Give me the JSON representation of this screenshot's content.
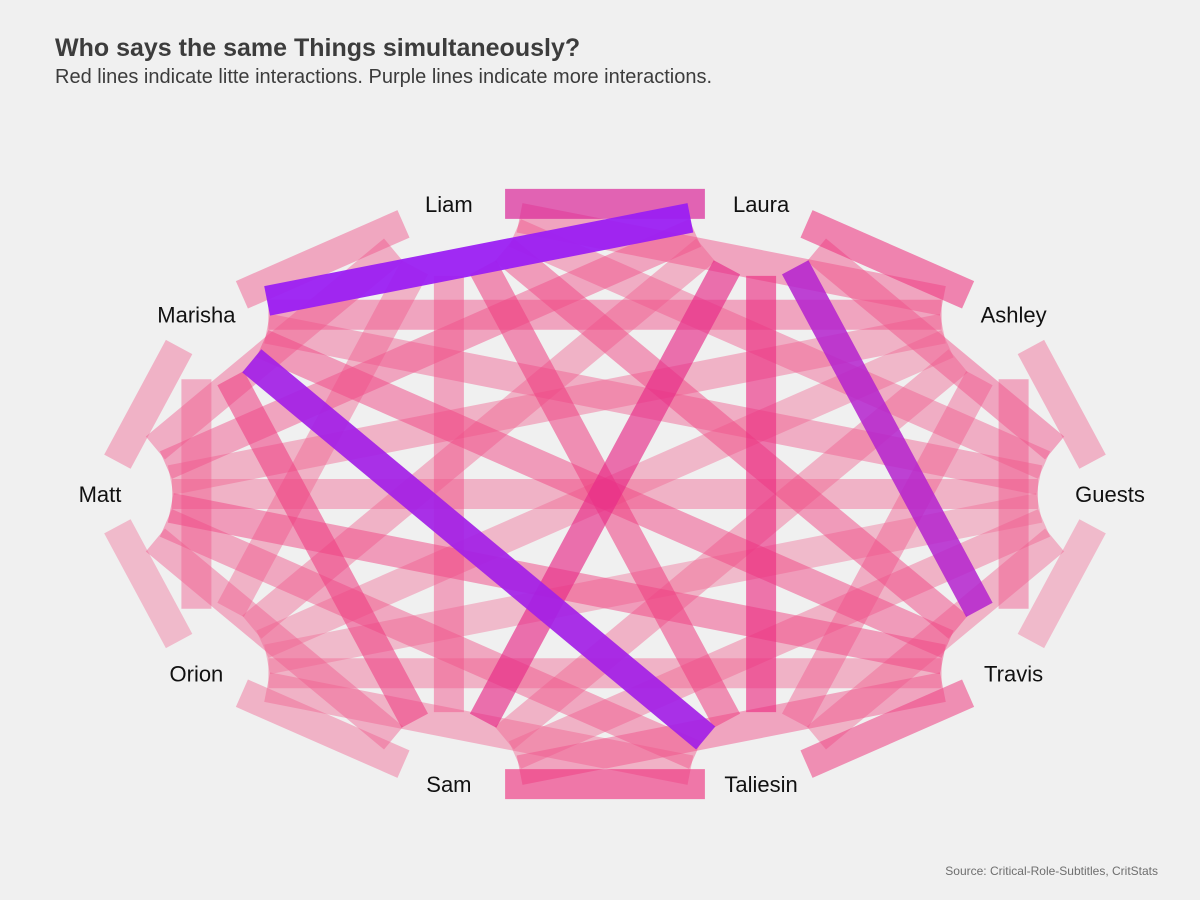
{
  "title": "Who says the same Things simultaneously?",
  "subtitle": "Red lines indicate litte interactions. Purple lines indicate more interactions.",
  "caption": "Source: Critical-Role-Subtitles, CritStats",
  "chart_data": {
    "type": "network",
    "layout": "circle",
    "nodes": [
      "Liam",
      "Laura",
      "Ashley",
      "Guests",
      "Travis",
      "Taliesin",
      "Sam",
      "Orion",
      "Matt",
      "Marisha"
    ],
    "color_scale": {
      "low": "#f28ea0",
      "mid": "#ee2a7b",
      "high": "#9b1ff2"
    },
    "edges": [
      {
        "source": "Liam",
        "target": "Laura",
        "weight": 0.62
      },
      {
        "source": "Liam",
        "target": "Ashley",
        "weight": 0.3
      },
      {
        "source": "Liam",
        "target": "Guests",
        "weight": 0.25
      },
      {
        "source": "Liam",
        "target": "Travis",
        "weight": 0.35
      },
      {
        "source": "Liam",
        "target": "Taliesin",
        "weight": 0.4
      },
      {
        "source": "Liam",
        "target": "Sam",
        "weight": 0.3
      },
      {
        "source": "Liam",
        "target": "Orion",
        "weight": 0.22
      },
      {
        "source": "Liam",
        "target": "Matt",
        "weight": 0.25
      },
      {
        "source": "Liam",
        "target": "Marisha",
        "weight": 0.28
      },
      {
        "source": "Laura",
        "target": "Ashley",
        "weight": 0.45
      },
      {
        "source": "Laura",
        "target": "Guests",
        "weight": 0.3
      },
      {
        "source": "Laura",
        "target": "Travis",
        "weight": 0.85
      },
      {
        "source": "Laura",
        "target": "Taliesin",
        "weight": 0.52
      },
      {
        "source": "Laura",
        "target": "Sam",
        "weight": 0.55
      },
      {
        "source": "Laura",
        "target": "Orion",
        "weight": 0.22
      },
      {
        "source": "Laura",
        "target": "Matt",
        "weight": 0.3
      },
      {
        "source": "Laura",
        "target": "Marisha",
        "weight": 1.0
      },
      {
        "source": "Ashley",
        "target": "Guests",
        "weight": 0.22
      },
      {
        "source": "Ashley",
        "target": "Travis",
        "weight": 0.28
      },
      {
        "source": "Ashley",
        "target": "Taliesin",
        "weight": 0.25
      },
      {
        "source": "Ashley",
        "target": "Sam",
        "weight": 0.22
      },
      {
        "source": "Ashley",
        "target": "Orion",
        "weight": 0.2
      },
      {
        "source": "Ashley",
        "target": "Matt",
        "weight": 0.22
      },
      {
        "source": "Ashley",
        "target": "Marisha",
        "weight": 0.3
      },
      {
        "source": "Guests",
        "target": "Travis",
        "weight": 0.18
      },
      {
        "source": "Guests",
        "target": "Taliesin",
        "weight": 0.22
      },
      {
        "source": "Guests",
        "target": "Sam",
        "weight": 0.22
      },
      {
        "source": "Guests",
        "target": "Orion",
        "weight": 0.18
      },
      {
        "source": "Guests",
        "target": "Matt",
        "weight": 0.22
      },
      {
        "source": "Guests",
        "target": "Marisha",
        "weight": 0.25
      },
      {
        "source": "Travis",
        "target": "Taliesin",
        "weight": 0.4
      },
      {
        "source": "Travis",
        "target": "Sam",
        "weight": 0.3
      },
      {
        "source": "Travis",
        "target": "Orion",
        "weight": 0.22
      },
      {
        "source": "Travis",
        "target": "Matt",
        "weight": 0.35
      },
      {
        "source": "Travis",
        "target": "Marisha",
        "weight": 0.35
      },
      {
        "source": "Taliesin",
        "target": "Sam",
        "weight": 0.5
      },
      {
        "source": "Taliesin",
        "target": "Orion",
        "weight": 0.22
      },
      {
        "source": "Taliesin",
        "target": "Matt",
        "weight": 0.28
      },
      {
        "source": "Taliesin",
        "target": "Marisha",
        "weight": 0.95
      },
      {
        "source": "Sam",
        "target": "Orion",
        "weight": 0.22
      },
      {
        "source": "Sam",
        "target": "Matt",
        "weight": 0.25
      },
      {
        "source": "Sam",
        "target": "Marisha",
        "weight": 0.42
      },
      {
        "source": "Orion",
        "target": "Matt",
        "weight": 0.18
      },
      {
        "source": "Orion",
        "target": "Marisha",
        "weight": 0.25
      },
      {
        "source": "Matt",
        "target": "Marisha",
        "weight": 0.22
      }
    ]
  }
}
